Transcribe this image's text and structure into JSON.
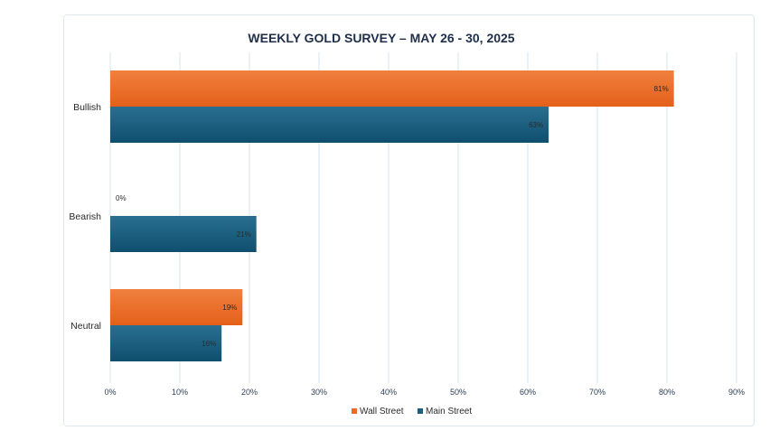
{
  "chart_data": {
    "type": "bar",
    "orientation": "horizontal",
    "title": "WEEKLY GOLD SURVEY – MAY 26 - 30, 2025",
    "categories": [
      "Bullish",
      "Bearish",
      "Neutral"
    ],
    "series": [
      {
        "name": "Wall Street",
        "color": "#ec6b23",
        "values": [
          81,
          0,
          19
        ],
        "labels": [
          "81%",
          "0%",
          "19%"
        ]
      },
      {
        "name": "Main Street",
        "color": "#1b5e7e",
        "values": [
          63,
          21,
          16
        ],
        "labels": [
          "63%",
          "21%",
          "16%"
        ]
      }
    ],
    "xlim": [
      0,
      90
    ],
    "xticks": [
      "0%",
      "10%",
      "20%",
      "30%",
      "40%",
      "50%",
      "60%",
      "70%",
      "80%",
      "90%"
    ],
    "grid": true,
    "legend": "bottom"
  }
}
